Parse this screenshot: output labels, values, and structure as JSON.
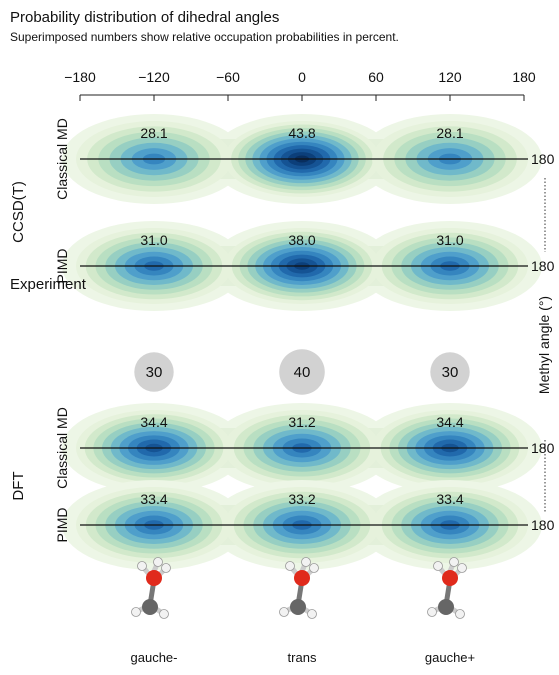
{
  "chart_data": {
    "type": "density",
    "title": "Probability distribution of dihedral angles",
    "subtitle": "Superimposed numbers show relative occupation probabilities in percent.",
    "xlim": [
      -180,
      180
    ],
    "xticks": [
      {
        "value": -180,
        "label": "−180"
      },
      {
        "value": -120,
        "label": "−120"
      },
      {
        "value": -60,
        "label": "−60"
      },
      0,
      60,
      120,
      180
    ],
    "peaks_x": [
      -120,
      0,
      120
    ],
    "categories": [
      "gauche-",
      "trans",
      "gauche+"
    ],
    "y_label": "Methyl angle (°)",
    "groups": [
      {
        "name": "CCSD(T)",
        "color": "#e8392d",
        "rows": [
          {
            "name": "Classical MD",
            "methyl_angle": 180,
            "values": [
              28.1,
              43.8,
              28.1
            ]
          },
          {
            "name": "PIMD",
            "methyl_angle": 180,
            "values": [
              31.0,
              38.0,
              31.0
            ],
            "value_labels": [
              "31.0",
              "38.0",
              "31.0"
            ]
          }
        ]
      },
      {
        "name": "DFT",
        "color": "#3a9fd8",
        "rows": [
          {
            "name": "Classical MD",
            "methyl_angle": 180,
            "values": [
              34.4,
              31.2,
              34.4
            ]
          },
          {
            "name": "PIMD",
            "methyl_angle": 180,
            "values": [
              33.4,
              33.2,
              33.4
            ]
          }
        ]
      }
    ],
    "experiment": {
      "name": "Experiment",
      "values": [
        30,
        40,
        30
      ]
    }
  }
}
